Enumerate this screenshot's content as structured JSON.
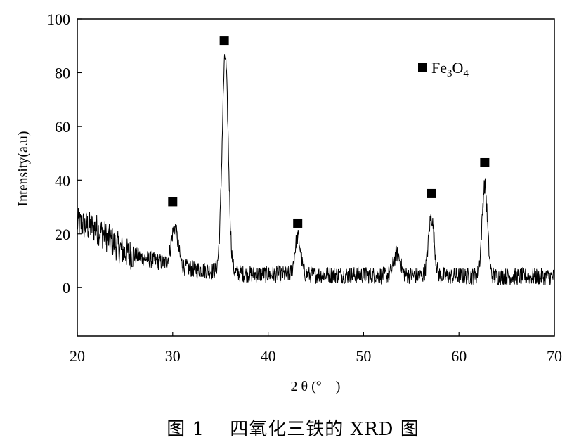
{
  "chart_data": {
    "type": "line",
    "xlabel": "2 θ (°　)",
    "ylabel": "Intensity(a.u)",
    "xlim": [
      20,
      70
    ],
    "ylim": [
      -18,
      100
    ],
    "xticks": [
      20,
      30,
      40,
      50,
      60,
      70
    ],
    "yticks": [
      0,
      20,
      40,
      60,
      80,
      100
    ],
    "grid": false,
    "legend": {
      "position": "top-right",
      "entries": [
        {
          "marker": "square",
          "label_main": "Fe",
          "sub1": "3",
          "label_mid": "O",
          "sub2": "4"
        }
      ]
    },
    "peak_markers": [
      {
        "x": 30.0,
        "y": 32
      },
      {
        "x": 35.4,
        "y": 92
      },
      {
        "x": 43.1,
        "y": 24
      },
      {
        "x": 57.1,
        "y": 35
      },
      {
        "x": 62.7,
        "y": 46.5
      }
    ],
    "series": [
      {
        "color": "#000000",
        "peaks": [
          {
            "center": 30.2,
            "height": 14,
            "width": 0.35
          },
          {
            "center": 35.5,
            "height": 80,
            "width": 0.32
          },
          {
            "center": 43.1,
            "height": 14,
            "width": 0.3
          },
          {
            "center": 53.5,
            "height": 8,
            "width": 0.35
          },
          {
            "center": 57.1,
            "height": 22,
            "width": 0.3
          },
          {
            "center": 62.7,
            "height": 34,
            "width": 0.28
          }
        ],
        "background": [
          {
            "x": 20,
            "y": 24
          },
          {
            "x": 22,
            "y": 22
          },
          {
            "x": 25,
            "y": 13
          },
          {
            "x": 28,
            "y": 10
          },
          {
            "x": 32,
            "y": 7
          },
          {
            "x": 38,
            "y": 5
          },
          {
            "x": 70,
            "y": 4
          }
        ],
        "noise_amplitude": 3.2
      }
    ]
  },
  "caption": "图 1　 四氧化三铁的 XRD 图"
}
